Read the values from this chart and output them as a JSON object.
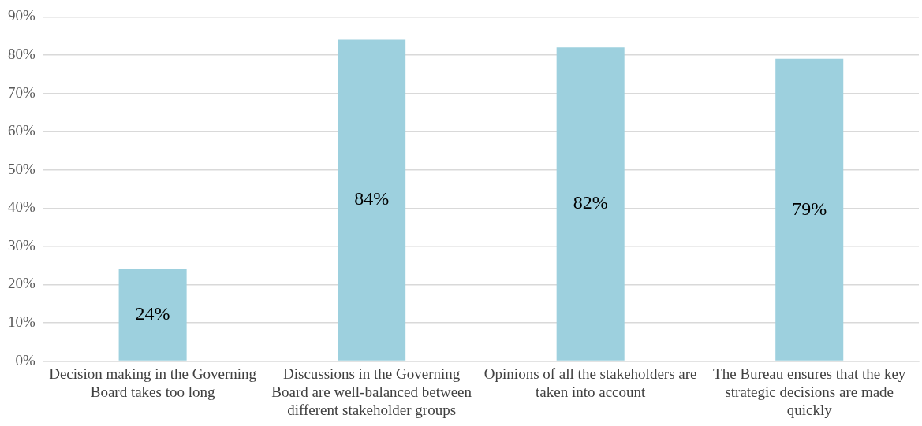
{
  "chart_data": {
    "type": "bar",
    "categories": [
      "Decision making in the Governing Board takes too long",
      "Discussions in the Governing Board are well-balanced between different stakeholder groups",
      "Opinions of all the stakeholders are taken into account",
      "The Bureau ensures that the key strategic decisions are made quickly"
    ],
    "values": [
      24,
      84,
      82,
      79
    ],
    "value_labels": [
      "24%",
      "84%",
      "82%",
      "79%"
    ],
    "color": "#9dd0de",
    "ylim": [
      0,
      90
    ],
    "yticks": [
      {
        "value": 0,
        "label": "0%"
      },
      {
        "value": 10,
        "label": "10%"
      },
      {
        "value": 20,
        "label": "20%"
      },
      {
        "value": 30,
        "label": "30%"
      },
      {
        "value": 40,
        "label": "40%"
      },
      {
        "value": 50,
        "label": "50%"
      },
      {
        "value": 60,
        "label": "60%"
      },
      {
        "value": 70,
        "label": "70%"
      },
      {
        "value": 80,
        "label": "80%"
      },
      {
        "value": 90,
        "label": "90%"
      }
    ],
    "grid": "y"
  }
}
